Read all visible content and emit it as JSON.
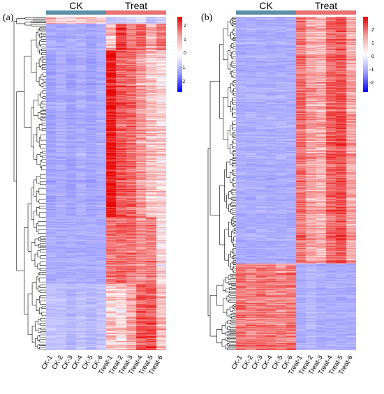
{
  "panels": {
    "a": {
      "letter": "(a)",
      "groups": [
        {
          "label": "CK",
          "color": "#5b8fa8"
        },
        {
          "label": "Treat",
          "color": "#e8706e"
        }
      ],
      "columns": [
        "CK-1",
        "CK-2",
        "CK-3",
        "CK-4",
        "CK-5",
        "CK-6",
        "Treat-1",
        "Treat-2",
        "Treat-3",
        "Treat-4",
        "Treat-5",
        "Treat-6"
      ],
      "legend_ticks": [
        "2",
        "1",
        "0",
        "-1",
        "-2"
      ]
    },
    "b": {
      "letter": "(b)",
      "groups": [
        {
          "label": "CK",
          "color": "#5b8fa8"
        },
        {
          "label": "Treat",
          "color": "#e8706e"
        }
      ],
      "columns": [
        "CK-1",
        "CK-2",
        "CK-3",
        "CK-4",
        "CK-5",
        "CK-6",
        "Treat-1",
        "Treat-2",
        "Treat-3",
        "Treat-4",
        "Treat-5",
        "Treat-6"
      ],
      "legend_ticks": [
        "2",
        "1",
        "0",
        "-1",
        "-2"
      ]
    }
  },
  "chart_data": [
    {
      "type": "heatmap",
      "title": "",
      "columns": [
        "CK-1",
        "CK-2",
        "CK-3",
        "CK-4",
        "CK-5",
        "CK-6",
        "Treat-1",
        "Treat-2",
        "Treat-3",
        "Treat-4",
        "Treat-5",
        "Treat-6"
      ],
      "column_groups": {
        "CK": [
          "CK-1",
          "CK-2",
          "CK-3",
          "CK-4",
          "CK-5",
          "CK-6"
        ],
        "Treat": [
          "Treat-1",
          "Treat-2",
          "Treat-3",
          "Treat-4",
          "Treat-5",
          "Treat-6"
        ]
      },
      "color_scale": {
        "min": -2.5,
        "max": 2.5,
        "low_color": "#0000ff",
        "mid_color": "#ffffff",
        "high_color": "#e80000"
      },
      "row_blocks": [
        {
          "rows_fraction": 0.02,
          "values": [
            0.8,
            0.3,
            0.2,
            0.5,
            0.6,
            0.4,
            -0.6,
            -0.5,
            -0.4,
            -0.3,
            -0.6,
            -0.5
          ]
        },
        {
          "rows_fraction": 0.08,
          "values": [
            -0.8,
            -0.9,
            -0.8,
            -0.8,
            -0.9,
            -0.8,
            0.6,
            1.9,
            1.2,
            1.6,
            0.8,
            1.4
          ]
        },
        {
          "rows_fraction": 0.5,
          "values": [
            -0.9,
            -0.8,
            -0.9,
            -0.8,
            -0.9,
            -0.8,
            2.3,
            1.6,
            1.5,
            1.0,
            0.6,
            0.4
          ]
        },
        {
          "rows_fraction": 0.2,
          "values": [
            -0.8,
            -0.8,
            -0.8,
            -0.8,
            -0.8,
            -0.8,
            1.4,
            1.5,
            1.4,
            1.1,
            1.3,
            0.3
          ]
        },
        {
          "rows_fraction": 0.2,
          "values": [
            -0.6,
            -0.6,
            -0.7,
            -0.6,
            -0.7,
            -0.6,
            0.5,
            0.4,
            0.9,
            1.6,
            1.7,
            0.6
          ]
        }
      ]
    },
    {
      "type": "heatmap",
      "title": "",
      "columns": [
        "CK-1",
        "CK-2",
        "CK-3",
        "CK-4",
        "CK-5",
        "CK-6",
        "Treat-1",
        "Treat-2",
        "Treat-3",
        "Treat-4",
        "Treat-5",
        "Treat-6"
      ],
      "column_groups": {
        "CK": [
          "CK-1",
          "CK-2",
          "CK-3",
          "CK-4",
          "CK-5",
          "CK-6"
        ],
        "Treat": [
          "Treat-1",
          "Treat-2",
          "Treat-3",
          "Treat-4",
          "Treat-5",
          "Treat-6"
        ]
      },
      "color_scale": {
        "min": -2.5,
        "max": 2.5,
        "low_color": "#0000ff",
        "mid_color": "#ffffff",
        "high_color": "#e80000"
      },
      "row_blocks": [
        {
          "rows_fraction": 0.74,
          "values": [
            -0.8,
            -0.8,
            -0.8,
            -0.8,
            -0.8,
            -0.8,
            1.4,
            0.9,
            0.8,
            1.5,
            1.7,
            0.9
          ]
        },
        {
          "rows_fraction": 0.26,
          "values": [
            1.3,
            1.2,
            1.4,
            1.3,
            1.2,
            1.3,
            -0.8,
            -0.7,
            -0.8,
            -0.8,
            -0.8,
            -0.8
          ]
        }
      ]
    }
  ]
}
